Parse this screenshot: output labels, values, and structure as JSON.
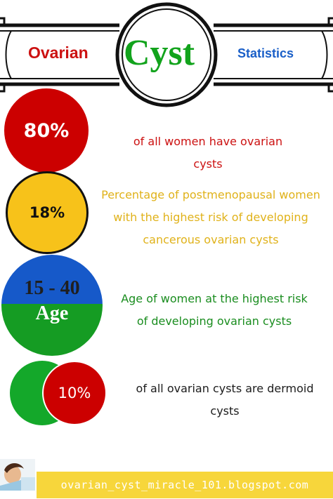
{
  "header": {
    "left_word": "Ovarian",
    "center_word": "Cyst",
    "right_word": "Statistics"
  },
  "stats": [
    {
      "value": "80%",
      "description": "of all women have ovarian cysts"
    },
    {
      "value": "18%",
      "description": "Percentage of postmenopausal women with the highest risk of developing cancerous ovarian cysts"
    },
    {
      "value_line1": "15 - 40",
      "value_line2": "Age",
      "description": "Age of women at the highest risk of developing ovarian cysts"
    },
    {
      "value": "10%",
      "description": "of all ovarian cysts are dermoid cysts"
    }
  ],
  "footer": {
    "url": "ovarian_cyst_miracle_101.blogspot.com"
  },
  "colors": {
    "red": "#cc0000",
    "yellow": "#f7c21a",
    "blue": "#1659c9",
    "green": "#14a82a",
    "footer_yellow": "#f7d63b"
  }
}
